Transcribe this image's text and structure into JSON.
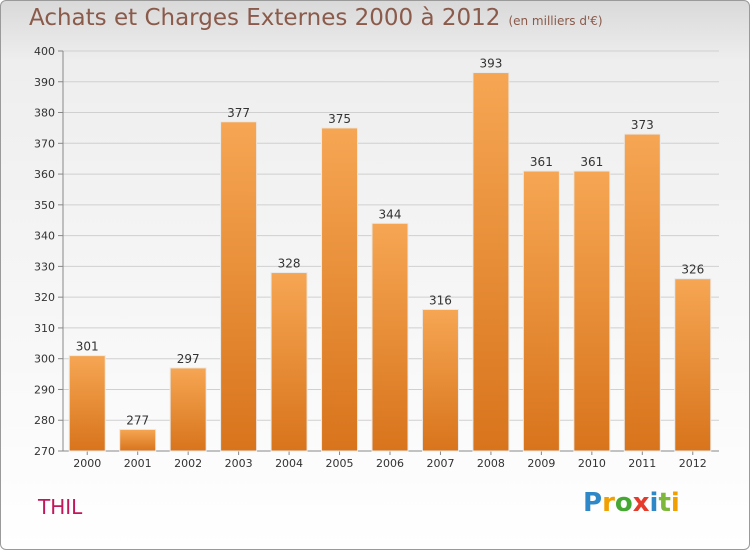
{
  "header": {
    "title": "Achats et Charges Externes 2000 à 2012",
    "subtitle": "(en milliers d'€)"
  },
  "commune": "THIL",
  "logo": {
    "text": "Proxiti"
  },
  "colors": {
    "bar_light": "#f6a653",
    "bar_dark": "#d8741c",
    "commune": "#c2185b",
    "title": "#8a5a4a"
  },
  "chart_data": {
    "type": "bar",
    "title": "Achats et Charges Externes 2000 à 2012",
    "subtitle": "(en milliers d'€)",
    "categories": [
      "2000",
      "2001",
      "2002",
      "2003",
      "2004",
      "2005",
      "2006",
      "2007",
      "2008",
      "2009",
      "2010",
      "2011",
      "2012"
    ],
    "values": [
      301,
      277,
      297,
      377,
      328,
      375,
      344,
      316,
      393,
      361,
      361,
      373,
      326
    ],
    "ylim": [
      270,
      400
    ],
    "yticks": [
      270,
      280,
      290,
      300,
      310,
      320,
      330,
      340,
      350,
      360,
      370,
      380,
      390,
      400
    ],
    "grid": true,
    "xlabel": "",
    "ylabel": ""
  }
}
